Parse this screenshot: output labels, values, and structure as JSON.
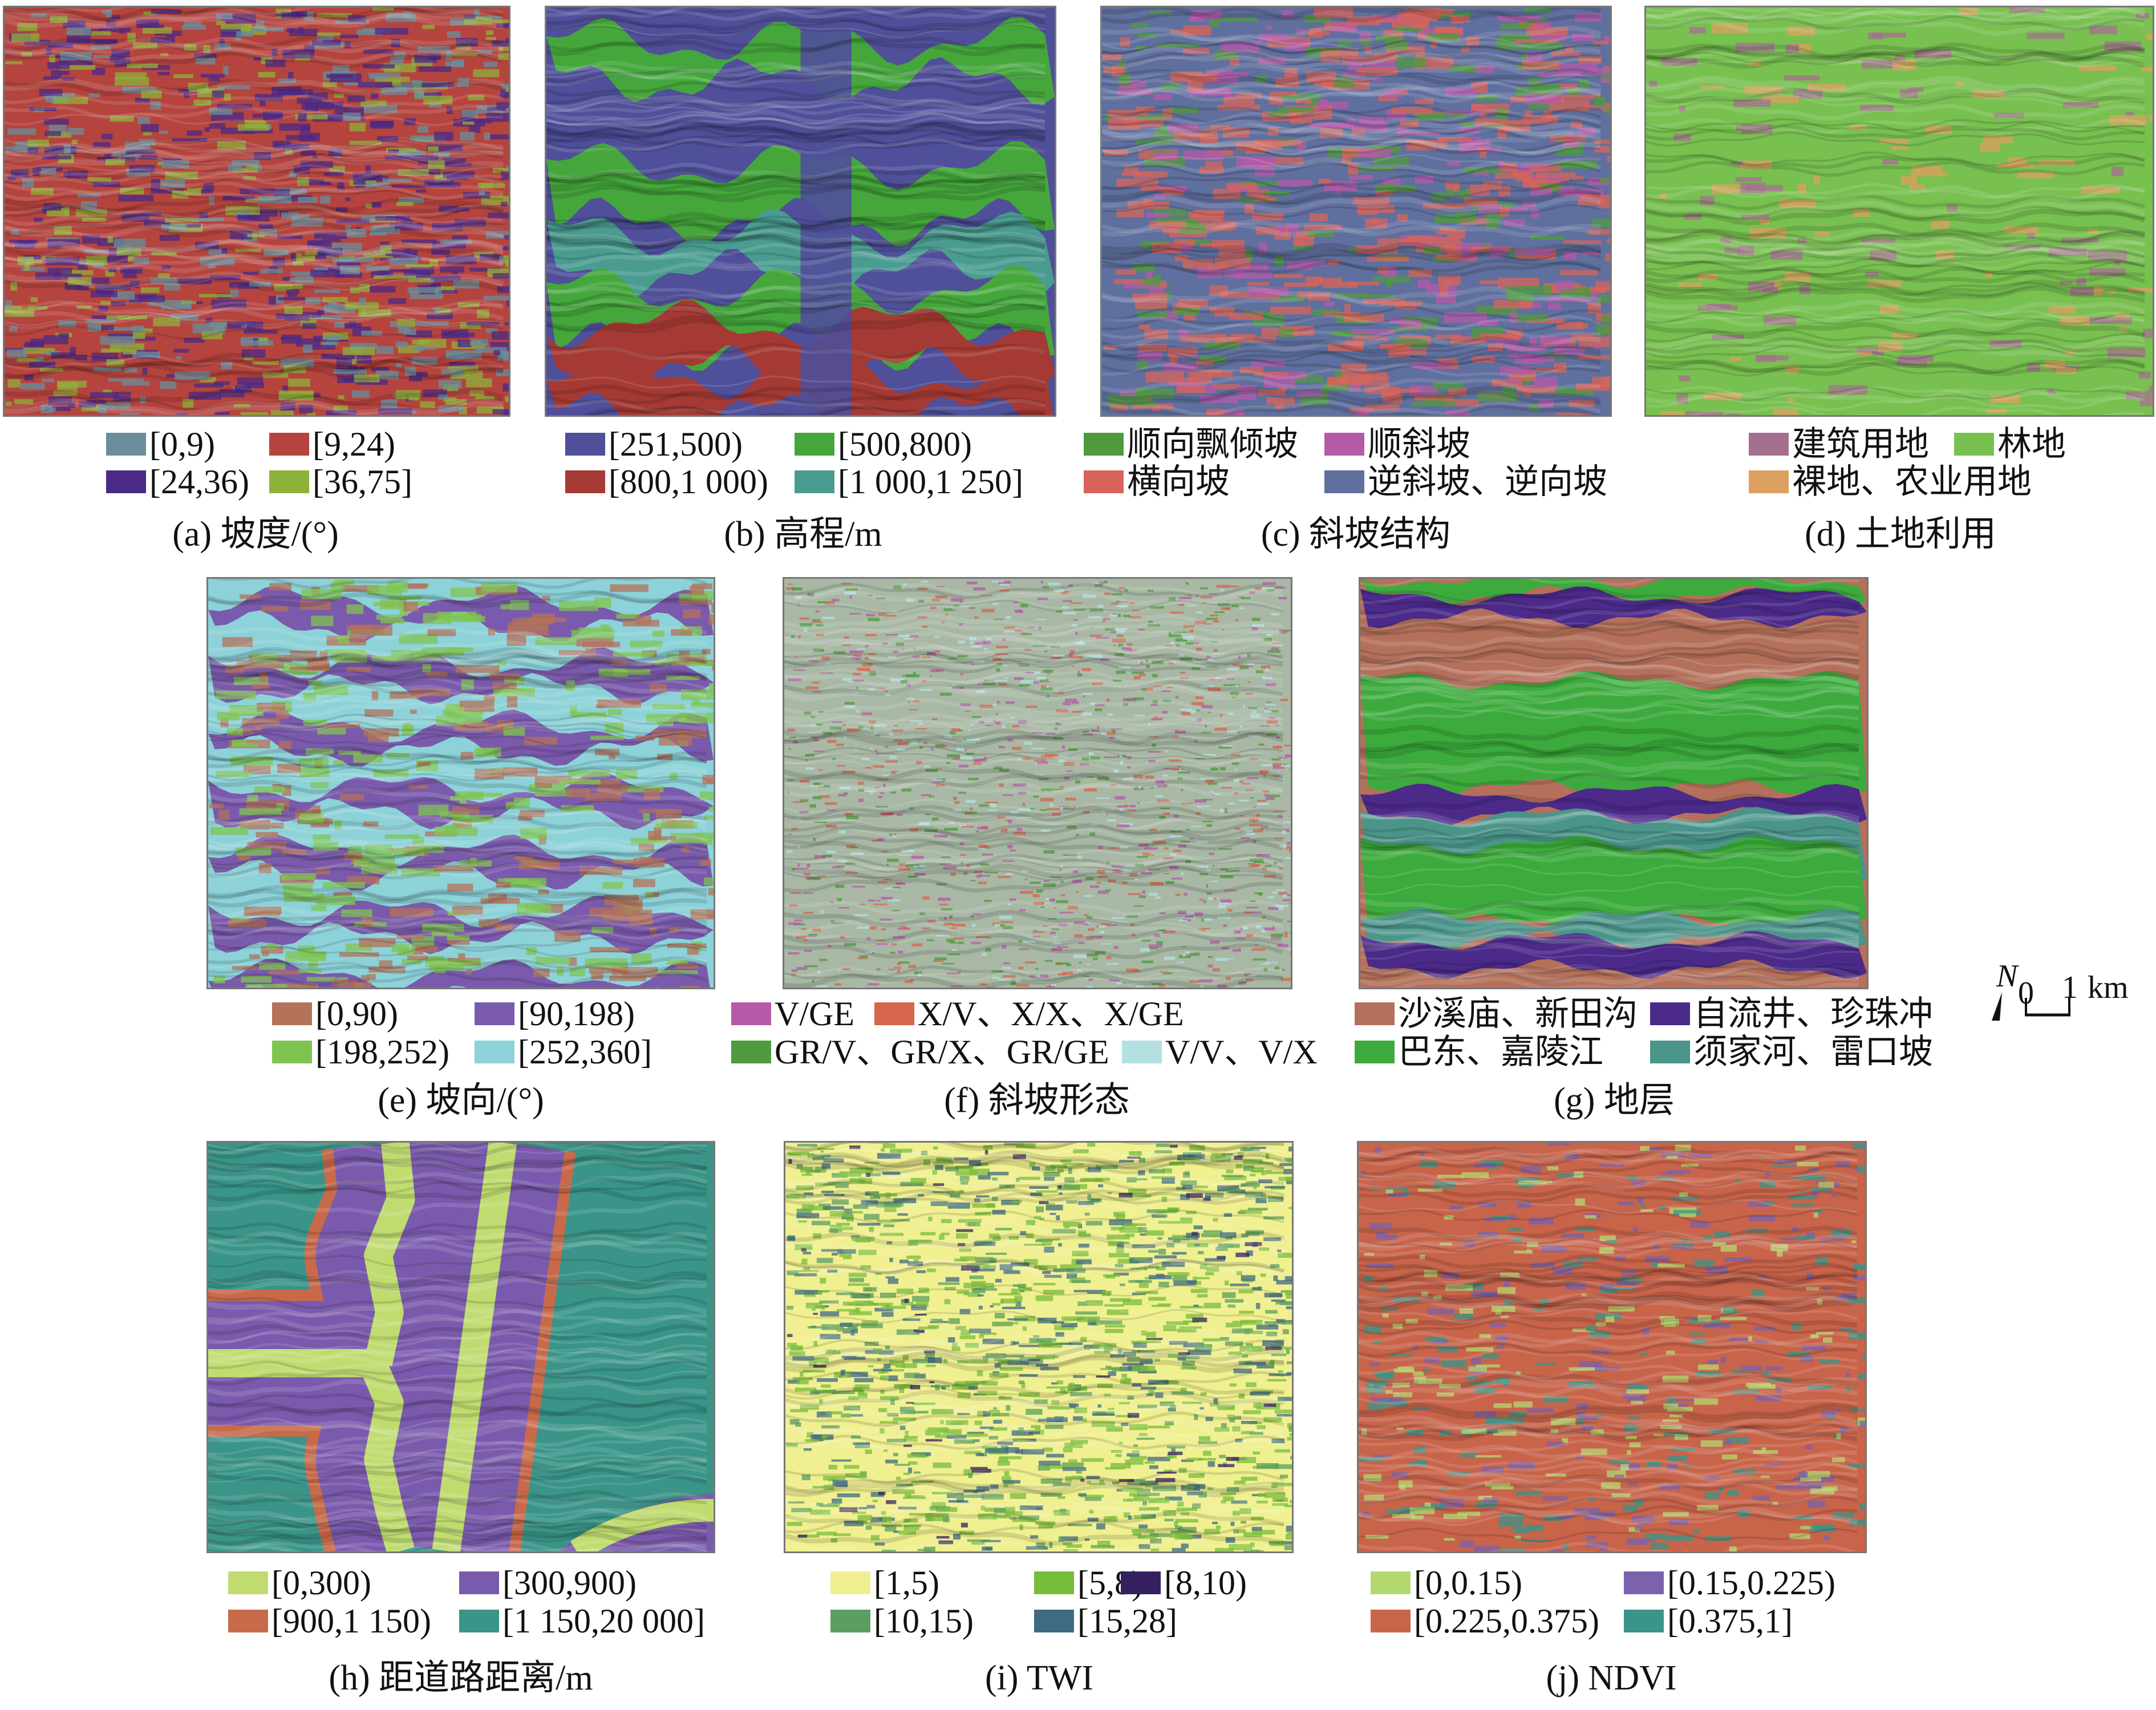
{
  "panels": [
    {
      "id": "a",
      "caption": "(a) 坡度/(°)",
      "legend": [
        {
          "label": "[0,9)",
          "color": "#6a8e9c"
        },
        {
          "label": "[9,24)",
          "color": "#b5443e"
        },
        {
          "label": "[24,36)",
          "color": "#4b2a86"
        },
        {
          "label": "[36,75]",
          "color": "#8db23a"
        }
      ]
    },
    {
      "id": "b",
      "caption": "(b) 高程/m",
      "legend": [
        {
          "label": "[251,500)",
          "color": "#4f4f9a"
        },
        {
          "label": "[500,800)",
          "color": "#45a63c"
        },
        {
          "label": "[800,1 000)",
          "color": "#a53a34"
        },
        {
          "label": "[1 000,1 250]",
          "color": "#4a9c90"
        }
      ]
    },
    {
      "id": "c",
      "caption": "(c) 斜坡结构",
      "legend": [
        {
          "label": "顺向飘倾坡",
          "color": "#4f9a3e"
        },
        {
          "label": "顺斜坡",
          "color": "#b45aa8"
        },
        {
          "label": "横向坡",
          "color": "#d6645a"
        },
        {
          "label": "逆斜坡、逆向坡",
          "color": "#5f6f9e"
        }
      ]
    },
    {
      "id": "d",
      "caption": "(d) 土地利用",
      "legend": [
        {
          "label": "建筑用地",
          "color": "#a57090"
        },
        {
          "label": "林地",
          "color": "#78c050"
        },
        {
          "label": "裸地、农业用地",
          "color": "#dca060"
        }
      ]
    },
    {
      "id": "e",
      "caption": "(e) 坡向/(°)",
      "legend": [
        {
          "label": "[0,90)",
          "color": "#b4725a"
        },
        {
          "label": "[90,198)",
          "color": "#7a5aac"
        },
        {
          "label": "[198,252)",
          "color": "#80c450"
        },
        {
          "label": "[252,360]",
          "color": "#8cd2d8"
        }
      ]
    },
    {
      "id": "f",
      "caption": "(f) 斜坡形态",
      "legend": [
        {
          "label": "V/GE",
          "color": "#b65aa8"
        },
        {
          "label": "X/V、X/X、X/GE",
          "color": "#d6644e"
        },
        {
          "label": "GR/V、GR/X、GR/GE",
          "color": "#4e9a3c"
        },
        {
          "label": "V/V、V/X",
          "color": "#b4e0e2"
        }
      ]
    },
    {
      "id": "g",
      "caption": "(g) 地层",
      "legend": [
        {
          "label": "沙溪庙、新田沟",
          "color": "#b4705a"
        },
        {
          "label": "自流井、珍珠冲",
          "color": "#4b2a8a"
        },
        {
          "label": "巴东、嘉陵江",
          "color": "#3caa3c"
        },
        {
          "label": "须家河、雷口坡",
          "color": "#4a948a"
        }
      ]
    },
    {
      "id": "h",
      "caption": "(h) 距道路距离/m",
      "legend": [
        {
          "label": "[0,300)",
          "color": "#c0dc70"
        },
        {
          "label": "[300,900)",
          "color": "#7a5aac"
        },
        {
          "label": "[900,1 150)",
          "color": "#c86a4a"
        },
        {
          "label": "[1 150,20 000]",
          "color": "#3a9488"
        }
      ]
    },
    {
      "id": "i",
      "caption": "(i) TWI",
      "legend": [
        {
          "label": "[1,5)",
          "color": "#f0f090"
        },
        {
          "label": "[5,8)",
          "color": "#78bc3c"
        },
        {
          "label": "[8,10)",
          "color": "#34205e"
        },
        {
          "label": "[10,15)",
          "color": "#5c9e60"
        },
        {
          "label": "[15,28]",
          "color": "#3e6a84"
        }
      ]
    },
    {
      "id": "j",
      "caption": "(j) NDVI",
      "legend": [
        {
          "label": "[0,0.15)",
          "color": "#b4d870"
        },
        {
          "label": "[0.15,0.225)",
          "color": "#7a62ac"
        },
        {
          "label": "[0.225,0.375)",
          "color": "#c8644a"
        },
        {
          "label": "[0.375,1]",
          "color": "#3a9488"
        }
      ]
    }
  ],
  "scale": {
    "zero": "0",
    "one": "1",
    "unit": "km",
    "north": "N"
  }
}
